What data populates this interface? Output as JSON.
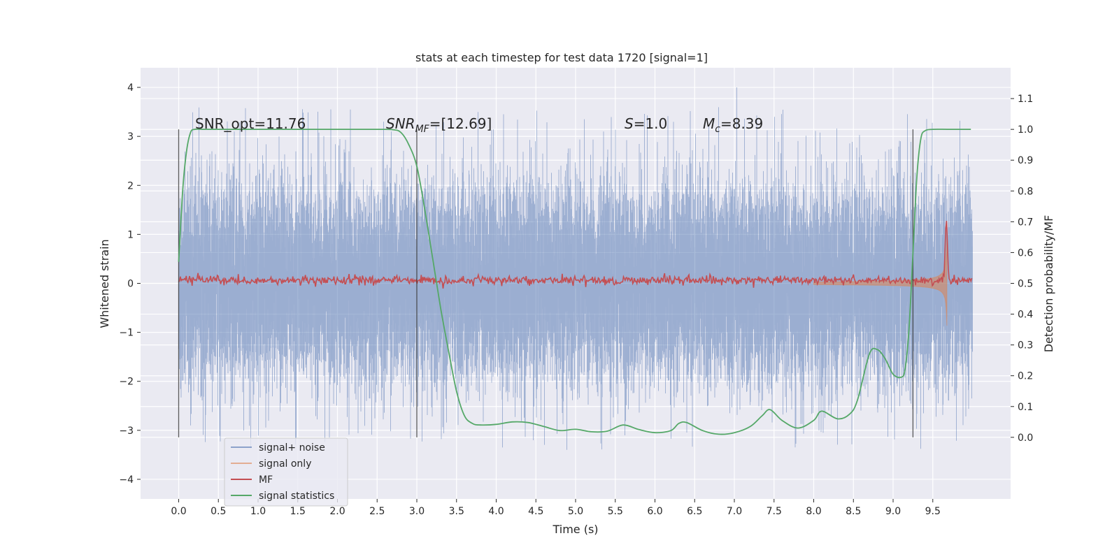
{
  "chart_data": {
    "type": "line",
    "title": "stats at each timestep for test data 1720 [signal=1]",
    "xlabel": "Time (s)",
    "ylabel": "Whitened strain",
    "y2label": "Detection probability/MF",
    "xlim": [
      -0.48,
      10.48
    ],
    "ylim": [
      -4.4,
      4.4
    ],
    "y2lim": [
      -0.2,
      1.2
    ],
    "xticks": [
      0.0,
      0.5,
      1.0,
      1.5,
      2.0,
      2.5,
      3.0,
      3.5,
      4.0,
      4.5,
      5.0,
      5.5,
      6.0,
      6.5,
      7.0,
      7.5,
      8.0,
      8.5,
      9.0,
      9.5
    ],
    "xtick_labels": [
      "0.0",
      "0.5",
      "1.0",
      "1.5",
      "2.0",
      "2.5",
      "3.0",
      "3.5",
      "4.0",
      "4.5",
      "5.0",
      "5.5",
      "6.0",
      "6.5",
      "7.0",
      "7.5",
      "8.0",
      "8.5",
      "9.0",
      "9.5"
    ],
    "yticks": [
      -4,
      -3,
      -2,
      -1,
      0,
      1,
      2,
      3,
      4
    ],
    "ytick_labels": [
      "−4",
      "−3",
      "−2",
      "−1",
      "0",
      "1",
      "2",
      "3",
      "4"
    ],
    "y2ticks": [
      0.0,
      0.1,
      0.2,
      0.3,
      0.4,
      0.5,
      0.6,
      0.7,
      0.8,
      0.9,
      1.0,
      1.1
    ],
    "y2tick_labels": [
      "0.0",
      "0.1",
      "0.2",
      "0.3",
      "0.4",
      "0.5",
      "0.6",
      "0.7",
      "0.8",
      "0.9",
      "1.0",
      "1.1"
    ],
    "grid": true,
    "background": "#eaeaf2",
    "legend_position": "lower-left",
    "annotations": {
      "snr_opt": "SNR_opt=11.76",
      "snr_mf": "=[12.69]",
      "snr_mf_label": "SNR",
      "snr_mf_sub": "MF",
      "s_value": "=1.0",
      "s_label": "S",
      "mc_value": "=8.39",
      "mc_label": "M",
      "mc_sub": "c"
    },
    "vertical_lines": [
      0.0,
      3.0,
      9.25
    ],
    "series": [
      {
        "name": "signal+ noise",
        "color": "#4c72b0",
        "opacity": 0.5,
        "description": "whitened noisy strain, amplitude roughly ±3 (peaks up to ±4)",
        "t_range": [
          0.0,
          10.0
        ],
        "typical_amplitude": 1.9,
        "peak_amplitude": 4.0
      },
      {
        "name": "signal only",
        "color": "#dd8452",
        "opacity": 0.5,
        "description": "chirp signal growing toward merger",
        "t_range": [
          8.0,
          9.68
        ],
        "merger_time": 9.68,
        "peak_amplitude": 1.85
      },
      {
        "name": "MF",
        "color": "#c44e52",
        "t_range": [
          0.0,
          10.0
        ],
        "baseline": 0.51,
        "peak_time": 9.67,
        "peak_value": 0.73
      },
      {
        "name": "signal statistics",
        "color": "#55a868",
        "x": [
          0.0,
          0.05,
          0.1,
          0.15,
          0.2,
          0.3,
          0.5,
          1.0,
          1.5,
          2.0,
          2.5,
          2.7,
          2.8,
          2.9,
          3.0,
          3.1,
          3.2,
          3.3,
          3.4,
          3.5,
          3.6,
          3.7,
          3.8,
          4.0,
          4.2,
          4.4,
          4.6,
          4.8,
          5.0,
          5.2,
          5.4,
          5.6,
          5.8,
          6.0,
          6.2,
          6.3,
          6.4,
          6.6,
          6.8,
          7.0,
          7.2,
          7.35,
          7.45,
          7.6,
          7.8,
          8.0,
          8.1,
          8.3,
          8.45,
          8.55,
          8.7,
          8.8,
          8.9,
          9.0,
          9.1,
          9.15,
          9.2,
          9.25,
          9.3,
          9.35,
          9.4,
          9.5,
          9.7,
          9.98
        ],
        "y": [
          0.57,
          0.8,
          0.93,
          0.99,
          1.0,
          1.0,
          1.0,
          1.0,
          1.0,
          1.0,
          1.0,
          0.999,
          0.99,
          0.95,
          0.88,
          0.74,
          0.58,
          0.42,
          0.28,
          0.15,
          0.07,
          0.045,
          0.04,
          0.042,
          0.05,
          0.048,
          0.035,
          0.022,
          0.026,
          0.018,
          0.02,
          0.04,
          0.025,
          0.015,
          0.022,
          0.045,
          0.048,
          0.022,
          0.01,
          0.015,
          0.035,
          0.07,
          0.09,
          0.055,
          0.03,
          0.055,
          0.085,
          0.06,
          0.075,
          0.12,
          0.27,
          0.285,
          0.255,
          0.205,
          0.195,
          0.22,
          0.35,
          0.6,
          0.85,
          0.97,
          0.995,
          1.0,
          1.0,
          1.0
        ]
      }
    ]
  }
}
